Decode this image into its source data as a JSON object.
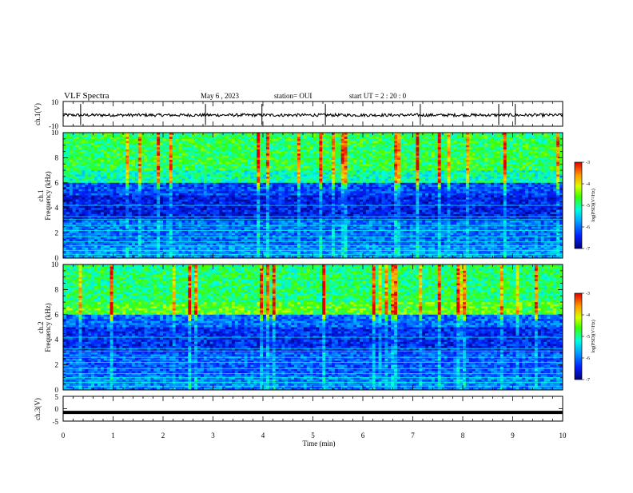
{
  "header": {
    "title": "VLF Spectra",
    "date": "May 6  , 2023",
    "station": "station= OUI",
    "start_ut": "start  UT  =   2 : 20 : 0"
  },
  "colors": {
    "axis": "#000000",
    "colormap": [
      "#00007a",
      "#0022ff",
      "#00a6ff",
      "#00ffe0",
      "#3cff00",
      "#d8ff00",
      "#ff9a00",
      "#e00000"
    ]
  },
  "chart_data": [
    {
      "type": "line",
      "panel": "ch1-waveform",
      "ylabel": "ch.1(V)",
      "yticks": [
        "10",
        "-10"
      ],
      "ylim": [
        -10,
        10
      ],
      "x_range": [
        0,
        9.83
      ],
      "series": [
        {
          "values_approx": "noisy signal around -1 V, amplitude about ±1 V, occasional spikes to ±10 V"
        }
      ]
    },
    {
      "type": "heatmap",
      "panel": "ch1-spectrogram",
      "ylabel": "ch.1\nFrequency (kHz)",
      "yticks": [
        "0",
        "2",
        "4",
        "6",
        "8",
        "10"
      ],
      "ylim": [
        0,
        10
      ],
      "x_range": [
        0,
        9.83
      ],
      "colorbar": {
        "label": "log(PSD)(V²/Hz)",
        "ticks": [
          "-3",
          "-4",
          "-5",
          "-6",
          "-7"
        ],
        "range": [
          -7,
          -3
        ]
      },
      "bands": [
        {
          "from_khz": 0,
          "to_khz": 1,
          "log_psd": -5.8
        },
        {
          "from_khz": 1,
          "to_khz": 3,
          "log_psd": -6.0
        },
        {
          "from_khz": 3,
          "to_khz": 5,
          "log_psd": -6.5
        },
        {
          "from_khz": 5,
          "to_khz": 6,
          "log_psd": -6.2
        },
        {
          "from_khz": 6,
          "to_khz": 7,
          "log_psd": -5.1
        },
        {
          "from_khz": 7,
          "to_khz": 10,
          "log_psd": -4.8
        }
      ]
    },
    {
      "type": "heatmap",
      "panel": "ch2-spectrogram",
      "ylabel": "ch.2\nFrequency (kHz)",
      "yticks": [
        "0",
        "2",
        "4",
        "6",
        "8",
        "10"
      ],
      "ylim": [
        0,
        10
      ],
      "x_range": [
        0,
        9.83
      ],
      "colorbar": {
        "label": "log(PSD)(V²/Hz)",
        "ticks": [
          "-3",
          "-4",
          "-5",
          "-6",
          "-7"
        ],
        "range": [
          -7,
          -3
        ]
      },
      "bands": [
        {
          "from_khz": 0,
          "to_khz": 1,
          "log_psd": -5.9
        },
        {
          "from_khz": 1,
          "to_khz": 3,
          "log_psd": -6.1
        },
        {
          "from_khz": 3,
          "to_khz": 5,
          "log_psd": -6.4
        },
        {
          "from_khz": 5,
          "to_khz": 6,
          "log_psd": -6.0
        },
        {
          "from_khz": 6,
          "to_khz": 7,
          "log_psd": -4.6
        },
        {
          "from_khz": 7,
          "to_khz": 10,
          "log_psd": -4.9
        }
      ]
    },
    {
      "type": "line",
      "panel": "ch3-waveform",
      "ylabel": "ch.3(V)",
      "yticks": [
        "5",
        "0",
        "-5"
      ],
      "ylim": [
        -5,
        5
      ],
      "x_range": [
        0,
        9.83
      ],
      "series": [
        {
          "values_approx": "constant near -1.5 V"
        }
      ]
    }
  ],
  "xaxis": {
    "label": "Time  (min)",
    "ticks": [
      "0",
      "1",
      "2",
      "3",
      "4",
      "5",
      "6",
      "7",
      "8",
      "9",
      "10"
    ],
    "xlim": [
      0,
      10
    ]
  }
}
